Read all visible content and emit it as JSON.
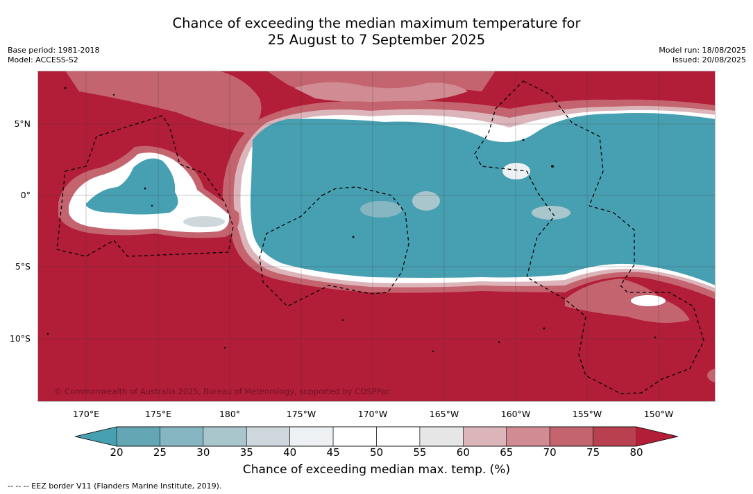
{
  "title": {
    "line1": "Chance of exceeding the median maximum temperature for",
    "line2": "25 August to 7 September 2025"
  },
  "meta_left": {
    "base_period": "Base period: 1981-2018",
    "model": "Model: ACCESS-S2"
  },
  "meta_right": {
    "model_run": "Model run: 18/08/2025",
    "issued": "Issued: 20/08/2025"
  },
  "map": {
    "lat_labels": [
      "5°N",
      "0°",
      "5°S",
      "10°S"
    ],
    "lon_labels": [
      "170°E",
      "175°E",
      "180°",
      "175°W",
      "170°W",
      "165°W",
      "160°W",
      "155°W",
      "150°W"
    ],
    "copyright": "© Commonwealth of Australia 2025, Bureau of Meteorology, supported by COSPPac",
    "colors": {
      "high": "#b21d37",
      "low": "#47a0b2",
      "neutral": "#ffffff"
    }
  },
  "colorbar": {
    "ticks": [
      "20",
      "25",
      "30",
      "35",
      "40",
      "45",
      "50",
      "55",
      "60",
      "65",
      "70",
      "75",
      "80"
    ],
    "colors": [
      "#64a6b3",
      "#85b6c2",
      "#a9c6cc",
      "#ced8dc",
      "#edf1f4",
      "#ffffff",
      "#ffffff",
      "#e6e6e6",
      "#dcb5bb",
      "#d18b93",
      "#c4646f",
      "#b9404f"
    ],
    "under_color": "#47a0b2",
    "over_color": "#b21d37",
    "title": "Chance of exceeding median max. temp. (%)"
  },
  "footer": "--  --  -- EEZ border V11 (Flanders Marine Institute, 2019)."
}
